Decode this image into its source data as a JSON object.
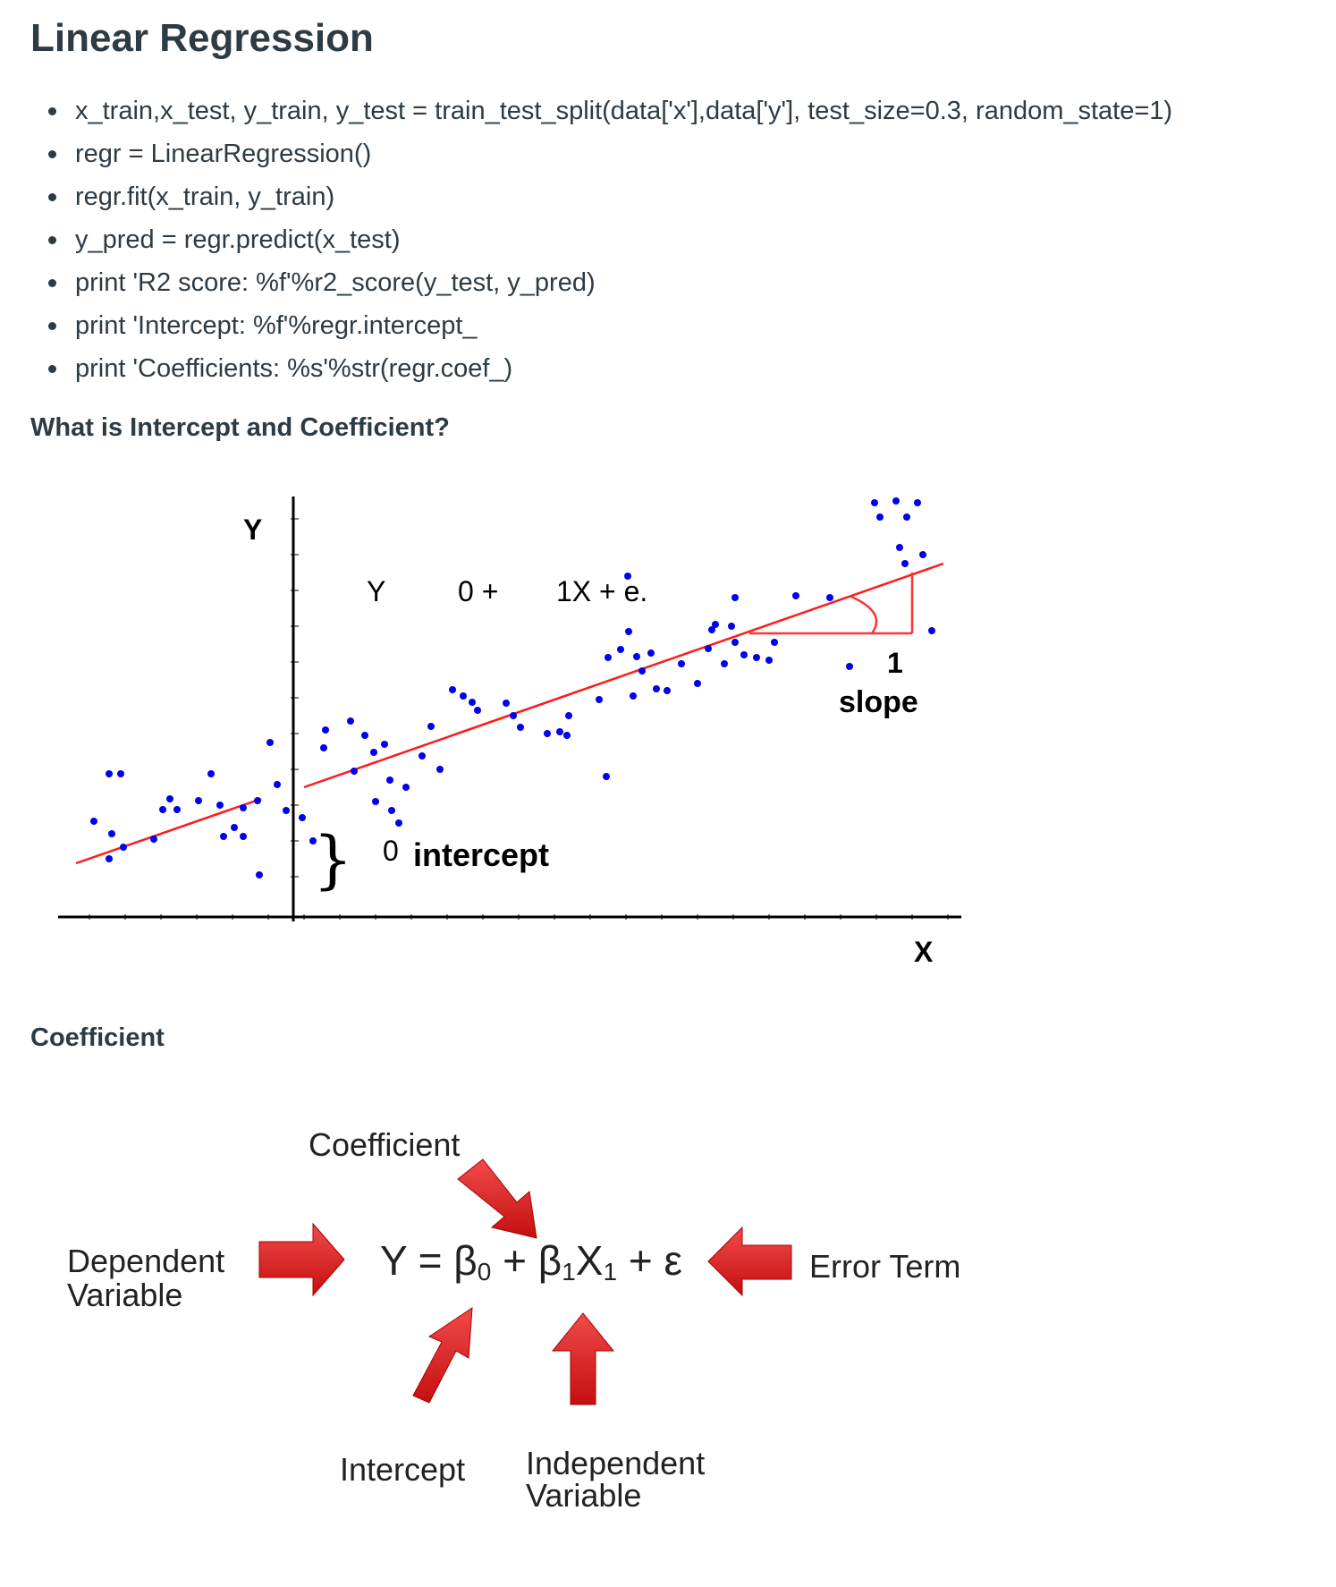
{
  "page": {
    "title": "Linear Regression",
    "code_lines": [
      "x_train,x_test, y_train, y_test = train_test_split(data['x'],data['y'], test_size=0.3, random_state=1)",
      "regr = LinearRegression()",
      "regr.fit(x_train, y_train)",
      "y_pred = regr.predict(x_test)",
      "print 'R2 score: %f'%r2_score(y_test, y_pred)",
      "print 'Intercept: %f'%regr.intercept_",
      "print 'Coefficients: %s'%str(regr.coef_)"
    ],
    "question_heading": "What is Intercept and Coefficient?",
    "coefficient_heading": "Coefficient"
  },
  "regression_figure": {
    "y_axis_label": "Y",
    "x_axis_label": "X",
    "equation": {
      "y": "Y",
      "b0": "0 +",
      "b1x": "1X + e."
    },
    "slope_run_label": "1",
    "slope_label": "slope",
    "intercept_symbol": "0",
    "intercept_label": "intercept",
    "colors": {
      "line": "#ff1a1a",
      "points": "#0000ee",
      "axes": "#000000",
      "slope_triangle": "#ff3333"
    },
    "points": [
      [
        122,
        865
      ],
      [
        135,
        865
      ],
      [
        105,
        918
      ],
      [
        125,
        932
      ],
      [
        138,
        947
      ],
      [
        122,
        960
      ],
      [
        172,
        938
      ],
      [
        182,
        905
      ],
      [
        190,
        893
      ],
      [
        198,
        905
      ],
      [
        222,
        895
      ],
      [
        236,
        865
      ],
      [
        246,
        900
      ],
      [
        250,
        935
      ],
      [
        262,
        925
      ],
      [
        272,
        935
      ],
      [
        288,
        895
      ],
      [
        290,
        978
      ],
      [
        272,
        903
      ],
      [
        302,
        830
      ],
      [
        310,
        877
      ],
      [
        320,
        906
      ],
      [
        338,
        914
      ],
      [
        350,
        940
      ],
      [
        364,
        816
      ],
      [
        362,
        836
      ],
      [
        392,
        806
      ],
      [
        396,
        862
      ],
      [
        408,
        822
      ],
      [
        418,
        841
      ],
      [
        430,
        832
      ],
      [
        436,
        872
      ],
      [
        420,
        896
      ],
      [
        438,
        906
      ],
      [
        446,
        920
      ],
      [
        454,
        880
      ],
      [
        472,
        845
      ],
      [
        482,
        812
      ],
      [
        492,
        860
      ],
      [
        506,
        771
      ],
      [
        518,
        778
      ],
      [
        528,
        785
      ],
      [
        534,
        794
      ],
      [
        566,
        786
      ],
      [
        574,
        800
      ],
      [
        582,
        813
      ],
      [
        612,
        820
      ],
      [
        626,
        818
      ],
      [
        634,
        822
      ],
      [
        636,
        800
      ],
      [
        670,
        782
      ],
      [
        678,
        868
      ],
      [
        680,
        735
      ],
      [
        694,
        726
      ],
      [
        703,
        706
      ],
      [
        712,
        734
      ],
      [
        708,
        778
      ],
      [
        718,
        750
      ],
      [
        728,
        730
      ],
      [
        734,
        770
      ],
      [
        746,
        772
      ],
      [
        762,
        742
      ],
      [
        780,
        764
      ],
      [
        792,
        725
      ],
      [
        796,
        704
      ],
      [
        800,
        698
      ],
      [
        810,
        742
      ],
      [
        822,
        718
      ],
      [
        818,
        700
      ],
      [
        832,
        732
      ],
      [
        846,
        735
      ],
      [
        860,
        738
      ],
      [
        866,
        718
      ],
      [
        890,
        666
      ],
      [
        928,
        668
      ],
      [
        950,
        745
      ],
      [
        984,
        578
      ],
      [
        978,
        562
      ],
      [
        1002,
        560
      ],
      [
        1014,
        578
      ],
      [
        1026,
        562
      ],
      [
        1012,
        630
      ],
      [
        1032,
        620
      ],
      [
        1042,
        705
      ],
      [
        1006,
        612
      ],
      [
        702,
        644
      ],
      [
        822,
        668
      ]
    ],
    "line_segments": [
      {
        "from": [
          85,
          965
        ],
        "to": [
          292,
          893
        ]
      },
      {
        "from": [
          340,
          880
        ],
        "to": [
          1055,
          630
        ]
      }
    ]
  },
  "equation_figure": {
    "coefficient_label": "Coefficient",
    "dependent_label_line1": "Dependent",
    "dependent_label_line2": "Variable",
    "equation_text": "Y = β",
    "equation_b0_sub": "0",
    "equation_mid": " + β",
    "equation_b1_sub": "1",
    "equation_x": "X",
    "equation_x_sub": "1",
    "equation_tail": " + ε",
    "error_term_label": "Error Term",
    "intercept_label": "Intercept",
    "independent_label_line1": "Independent",
    "independent_label_line2": "Variable",
    "arrow_color": "#e31b1b"
  }
}
